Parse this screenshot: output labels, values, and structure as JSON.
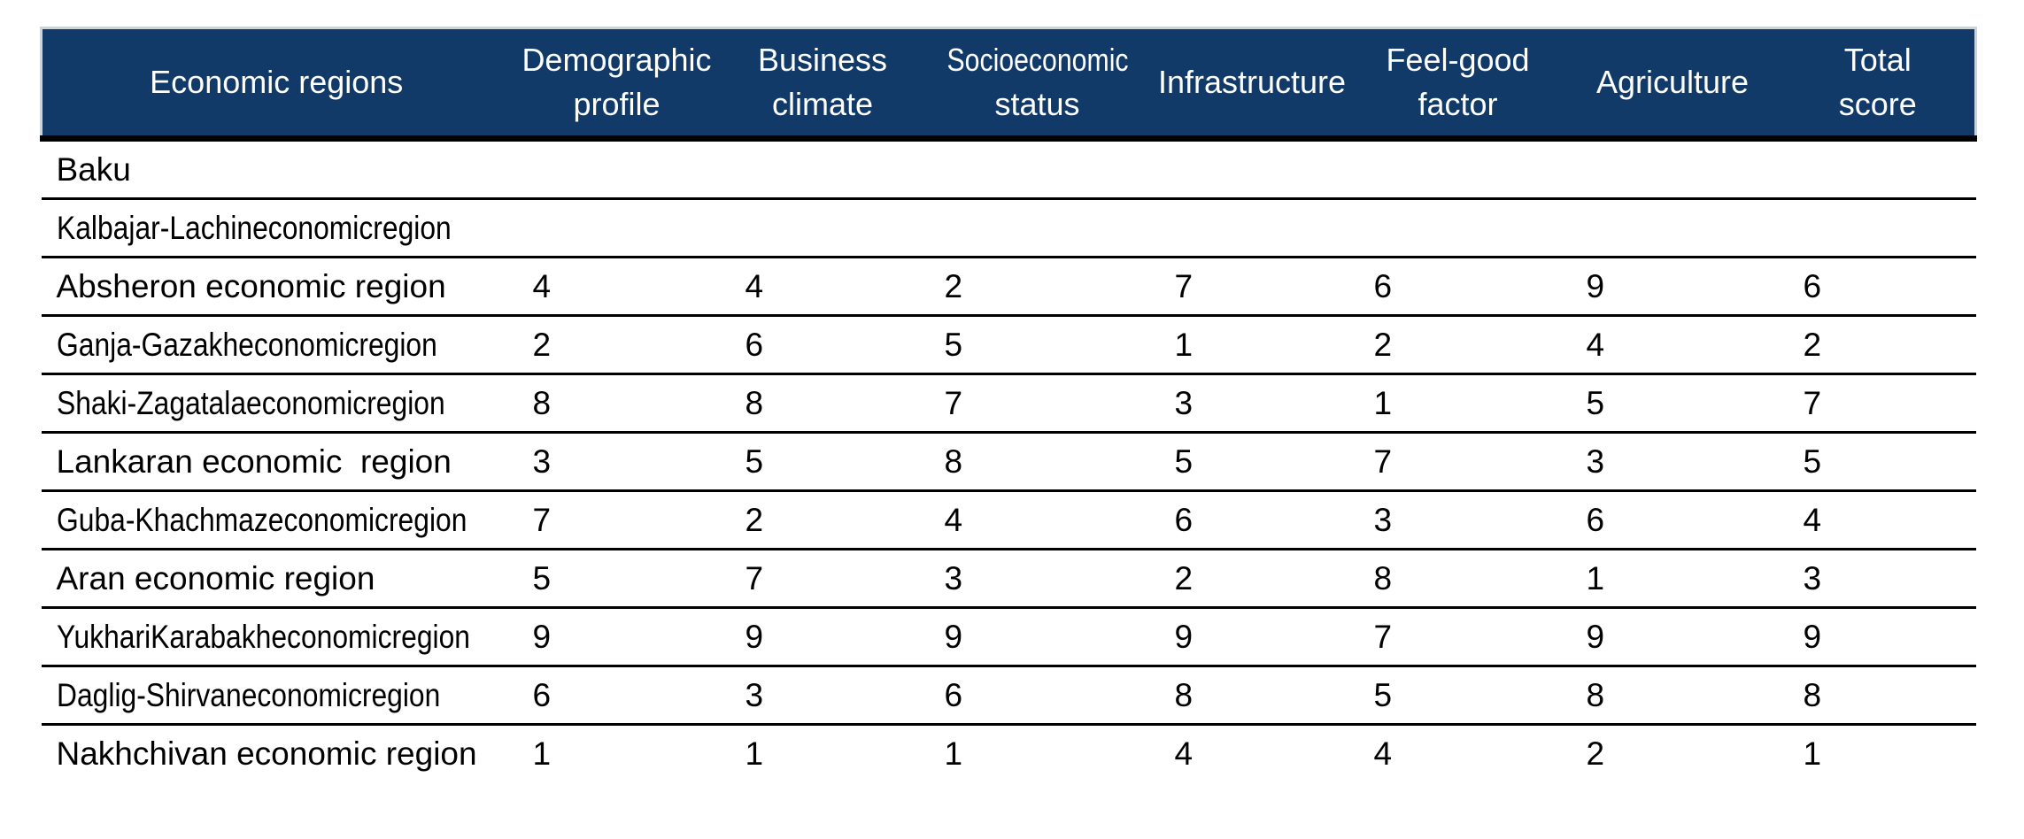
{
  "page": {
    "background": "#ffffff"
  },
  "table": {
    "header_bg": "#123a69",
    "header_text_color": "#ffffff",
    "header_edge_color": "#ccd3db",
    "rule_color": "#000000",
    "columns": [
      {
        "id": "economic-regions",
        "label": "Economic regions",
        "lines": [
          "Economic regions"
        ]
      },
      {
        "id": "demographic-profile",
        "label": "Demographic profile",
        "lines": [
          "Demographic",
          "profile"
        ]
      },
      {
        "id": "business-climate",
        "label": "Business climate",
        "lines": [
          "Business",
          "climate"
        ]
      },
      {
        "id": "socioeconomic-status",
        "label": "Socioeconomic status",
        "lines": [
          "Socioeconomic",
          "status"
        ],
        "fit": true
      },
      {
        "id": "infrastructure",
        "label": "Infrastructure",
        "lines": [
          "Infrastructure"
        ]
      },
      {
        "id": "feel-good-factor",
        "label": "Feel-good factor",
        "lines": [
          "Feel-good",
          "factor"
        ]
      },
      {
        "id": "agriculture",
        "label": "Agriculture",
        "lines": [
          "Agriculture"
        ]
      },
      {
        "id": "total-score",
        "label": "Total score",
        "lines": [
          "Total",
          "score"
        ]
      }
    ],
    "rows": [
      {
        "region": "Baku",
        "values": [
          "",
          "",
          "",
          "",
          "",
          "",
          ""
        ]
      },
      {
        "region": "Kalbajar-Lachineconomicregion",
        "values": [
          "",
          "",
          "",
          "",
          "",
          "",
          ""
        ],
        "fit": true
      },
      {
        "region": "Absheron economic region",
        "values": [
          "4",
          "4",
          "2",
          "7",
          "6",
          "9",
          "6"
        ]
      },
      {
        "region": "Ganja-Gazakheconomicregion",
        "values": [
          "2",
          "6",
          "5",
          "1",
          "2",
          "4",
          "2"
        ],
        "fit": true
      },
      {
        "region": "Shaki-Zagatalaeconomicregion",
        "values": [
          "8",
          "8",
          "7",
          "3",
          "1",
          "5",
          "7"
        ],
        "fit": true
      },
      {
        "region": "Lankaran economic  region",
        "values": [
          "3",
          "5",
          "8",
          "5",
          "7",
          "3",
          "5"
        ]
      },
      {
        "region": "Guba-Khachmazeconomicregion",
        "values": [
          "7",
          "2",
          "4",
          "6",
          "3",
          "6",
          "4"
        ],
        "fit": true
      },
      {
        "region": "Aran economic region",
        "values": [
          "5",
          "7",
          "3",
          "2",
          "8",
          "1",
          "3"
        ]
      },
      {
        "region": "YukhariKarabakheconomicregion",
        "values": [
          "9",
          "9",
          "9",
          "9",
          "7",
          "9",
          "9"
        ],
        "fit": true
      },
      {
        "region": "Daglig-Shirvaneconomicregion",
        "values": [
          "6",
          "3",
          "6",
          "8",
          "5",
          "8",
          "8"
        ],
        "fit": true
      },
      {
        "region": "Nakhchivan economic region",
        "values": [
          "1",
          "1",
          "1",
          "4",
          "4",
          "2",
          "1"
        ]
      }
    ]
  }
}
